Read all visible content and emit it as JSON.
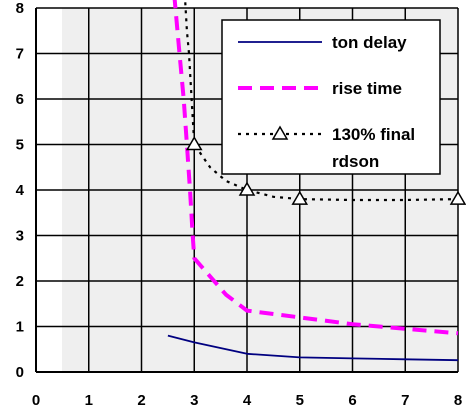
{
  "chart_data": {
    "type": "line",
    "title": "",
    "xlabel": "",
    "ylabel": "",
    "xlim": [
      0,
      8
    ],
    "ylim": [
      0,
      8
    ],
    "x_ticks": [
      "0",
      "1",
      "2",
      "3",
      "4",
      "5",
      "6",
      "7",
      "8"
    ],
    "y_ticks": [
      "0",
      "1",
      "2",
      "3",
      "4",
      "5",
      "6",
      "7",
      "8"
    ],
    "grid": true,
    "plot_background": "#efefef",
    "legend_position": "top-right",
    "series": [
      {
        "name": "ton delay",
        "color": "#000080",
        "style": "solid",
        "marker": "none",
        "points": [
          [
            2.5,
            0.8
          ],
          [
            3,
            0.65
          ],
          [
            4,
            0.4
          ],
          [
            5,
            0.32
          ],
          [
            6,
            0.3
          ],
          [
            7,
            0.28
          ],
          [
            8,
            0.26
          ]
        ]
      },
      {
        "name": "rise time",
        "color": "#ff00ff",
        "style": "dashed",
        "marker": "none",
        "points": [
          [
            2.62,
            8.3
          ],
          [
            2.72,
            7.0
          ],
          [
            2.8,
            6.0
          ],
          [
            2.86,
            5.0
          ],
          [
            2.92,
            4.0
          ],
          [
            2.97,
            3.0
          ],
          [
            3,
            2.5
          ],
          [
            3.3,
            2.1
          ],
          [
            3.6,
            1.7
          ],
          [
            4,
            1.35
          ],
          [
            5,
            1.2
          ],
          [
            6,
            1.05
          ],
          [
            7,
            0.95
          ],
          [
            8,
            0.85
          ]
        ]
      },
      {
        "name": "130% final rdson",
        "legend_lines": [
          "130% final",
          "rdson"
        ],
        "color": "#000000",
        "style": "dotted",
        "marker": "triangle",
        "marker_points": [
          [
            3,
            5.0
          ],
          [
            4,
            4.0
          ],
          [
            5,
            3.8
          ],
          [
            8,
            3.8
          ]
        ],
        "points": [
          [
            2.82,
            8.3
          ],
          [
            2.86,
            7.5
          ],
          [
            2.9,
            7.0
          ],
          [
            2.95,
            6.0
          ],
          [
            3,
            5.0
          ],
          [
            3.3,
            4.5
          ],
          [
            3.6,
            4.2
          ],
          [
            4,
            4.0
          ],
          [
            4.5,
            3.85
          ],
          [
            5,
            3.8
          ],
          [
            6,
            3.78
          ],
          [
            7,
            3.78
          ],
          [
            8,
            3.8
          ]
        ]
      }
    ]
  }
}
